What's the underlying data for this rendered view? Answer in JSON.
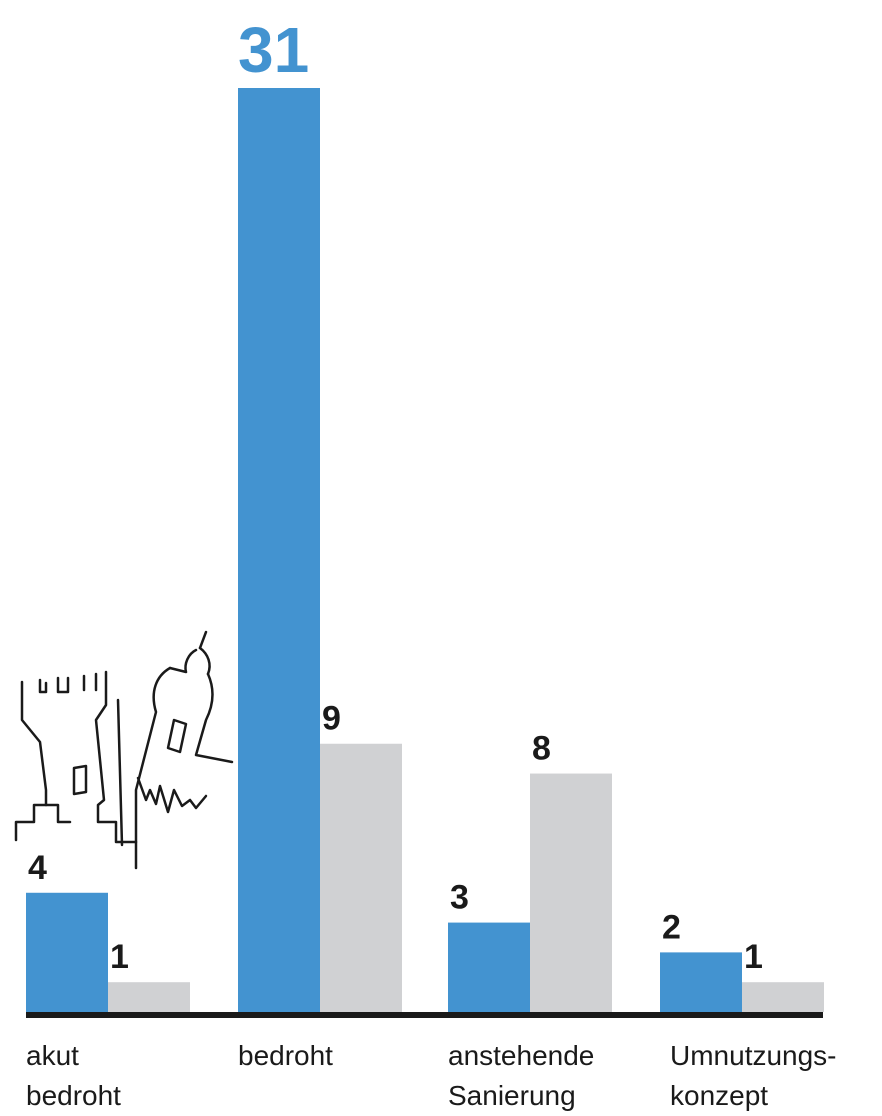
{
  "chart_data": {
    "type": "bar",
    "categories": [
      [
        "akut",
        "bedroht"
      ],
      [
        "bedroht"
      ],
      [
        "anstehende",
        "Sanierung"
      ],
      [
        "Umnutzungs-",
        "konzept"
      ]
    ],
    "series": [
      {
        "values": [
          4,
          31,
          3,
          2
        ],
        "color": "#4393d0"
      },
      {
        "values": [
          1,
          9,
          8,
          1
        ],
        "color": "#d0d1d3"
      }
    ],
    "ylim": [
      0,
      31
    ],
    "grid": false,
    "legend": "none",
    "baseline_color": "#1a1a1a",
    "highlight_label_color": "#4393d0",
    "label_color": "#1a1a1a"
  },
  "icons": {
    "illustration": "ruined-castle-and-leaning-tower-icon"
  }
}
